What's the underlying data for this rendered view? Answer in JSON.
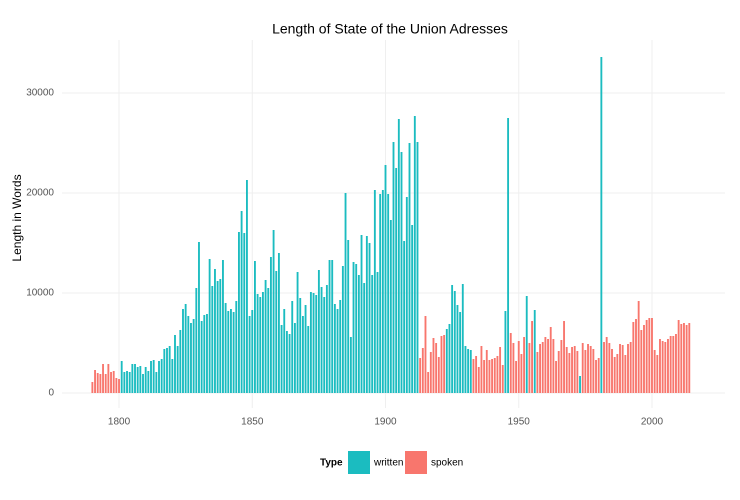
{
  "chart_data": {
    "type": "bar",
    "title": "Length of State of the Union Adresses",
    "y_label": "Length in Words",
    "legend_title": "Type",
    "legend": "bottom",
    "grid": true,
    "xlim": [
      1778.6,
      2027.4
    ],
    "xticks": [
      1800,
      1850,
      1900,
      1950,
      2000
    ],
    "ylim": [
      -1500,
      35300
    ],
    "yticks": [
      0,
      10000,
      20000,
      30000
    ],
    "series": [
      {
        "name": "written",
        "color": "#1bbcc0",
        "x": [
          1801,
          1802,
          1803,
          1804,
          1805,
          1806,
          1807,
          1808,
          1809,
          1810,
          1811,
          1812,
          1813,
          1814,
          1815,
          1816,
          1817,
          1818,
          1819,
          1820,
          1821,
          1822,
          1823,
          1824,
          1825,
          1826,
          1827,
          1828,
          1829,
          1830,
          1831,
          1832,
          1833,
          1834,
          1835,
          1836,
          1837,
          1838,
          1839,
          1840,
          1841,
          1842,
          1843,
          1844,
          1845,
          1846,
          1847,
          1848,
          1849,
          1850,
          1851,
          1852,
          1853,
          1854,
          1855,
          1856,
          1857,
          1858,
          1859,
          1860,
          1861,
          1862,
          1863,
          1864,
          1865,
          1866,
          1867,
          1868,
          1869,
          1870,
          1871,
          1872,
          1873,
          1874,
          1875,
          1876,
          1877,
          1878,
          1879,
          1880,
          1881,
          1882,
          1883,
          1884,
          1885,
          1886,
          1887,
          1888,
          1889,
          1890,
          1891,
          1892,
          1893,
          1894,
          1895,
          1896,
          1897,
          1898,
          1899,
          1900,
          1901,
          1902,
          1903,
          1904,
          1905,
          1906,
          1907,
          1908,
          1909,
          1910,
          1911,
          1912,
          1923,
          1924,
          1925,
          1926,
          1927,
          1928,
          1929,
          1930,
          1931,
          1932,
          1945,
          1946,
          1953,
          1956,
          1973,
          1981
        ],
        "values": [
          3200,
          2100,
          2200,
          2100,
          2900,
          2900,
          2600,
          2700,
          1900,
          2600,
          2200,
          3200,
          3300,
          2100,
          3200,
          3400,
          4400,
          4500,
          4700,
          3400,
          5800,
          4700,
          6300,
          8400,
          8900,
          7700,
          7000,
          7400,
          10500,
          15100,
          7200,
          7800,
          7900,
          13400,
          10700,
          12400,
          11200,
          11400,
          13300,
          9000,
          8200,
          8400,
          8100,
          9200,
          16100,
          18200,
          16000,
          21300,
          7700,
          8300,
          13200,
          9900,
          9600,
          10100,
          11300,
          10500,
          13600,
          16300,
          12200,
          14000,
          6800,
          8400,
          6200,
          5900,
          9200,
          7000,
          12100,
          9500,
          7700,
          8800,
          6700,
          10100,
          10000,
          9800,
          12300,
          10600,
          9600,
          10800,
          13300,
          13300,
          8900,
          8400,
          9300,
          12700,
          20000,
          15300,
          5600,
          13100,
          12900,
          11800,
          15800,
          11000,
          15700,
          15000,
          11800,
          20300,
          12100,
          19900,
          20300,
          22800,
          19900,
          17300,
          25100,
          22500,
          27400,
          24100,
          15200,
          19600,
          25000,
          16800,
          27700,
          25100,
          6400,
          6900,
          10800,
          10200,
          8800,
          8100,
          10900,
          4700,
          4400,
          4300,
          8200,
          27500,
          9700,
          8300,
          1700,
          33600
        ]
      },
      {
        "name": "spoken",
        "color": "#f8766d",
        "x": [
          1790,
          1791,
          1792,
          1793,
          1794,
          1795,
          1796,
          1797,
          1798,
          1799,
          1800,
          1913,
          1914,
          1915,
          1916,
          1917,
          1918,
          1919,
          1920,
          1921,
          1922,
          1933,
          1934,
          1935,
          1936,
          1937,
          1938,
          1939,
          1940,
          1941,
          1942,
          1943,
          1944,
          1947,
          1948,
          1949,
          1950,
          1951,
          1952,
          1954,
          1955,
          1957,
          1958,
          1959,
          1960,
          1961,
          1962,
          1963,
          1964,
          1965,
          1966,
          1967,
          1968,
          1969,
          1970,
          1971,
          1972,
          1974,
          1975,
          1976,
          1977,
          1978,
          1979,
          1980,
          1982,
          1983,
          1984,
          1985,
          1986,
          1987,
          1988,
          1989,
          1990,
          1991,
          1992,
          1993,
          1994,
          1995,
          1996,
          1997,
          1998,
          1999,
          2000,
          2001,
          2002,
          2003,
          2004,
          2005,
          2006,
          2007,
          2008,
          2009,
          2010,
          2011,
          2012,
          2013,
          2014
        ],
        "values": [
          1100,
          2300,
          2000,
          1900,
          2900,
          1900,
          2900,
          2100,
          2200,
          1500,
          1400,
          3500,
          4500,
          7700,
          2100,
          4100,
          5500,
          5000,
          3600,
          5700,
          5800,
          3400,
          3700,
          2600,
          4700,
          3300,
          4300,
          3300,
          3400,
          3500,
          3700,
          4600,
          2800,
          6000,
          5000,
          3200,
          5200,
          3900,
          5600,
          5000,
          7200,
          4100,
          4900,
          5100,
          5600,
          5400,
          6600,
          5400,
          3200,
          4200,
          5300,
          7200,
          4600,
          4000,
          4600,
          4700,
          4200,
          5000,
          4300,
          4900,
          4700,
          4400,
          3300,
          3500,
          5100,
          5600,
          5000,
          4400,
          3600,
          3900,
          4900,
          4800,
          3800,
          4900,
          5100,
          7100,
          7400,
          9200,
          6300,
          6800,
          7300,
          7500,
          7500,
          4300,
          3800,
          5400,
          5200,
          5100,
          5400,
          5700,
          5700,
          5900,
          7300,
          6900,
          7000,
          6800,
          7000
        ]
      }
    ]
  }
}
